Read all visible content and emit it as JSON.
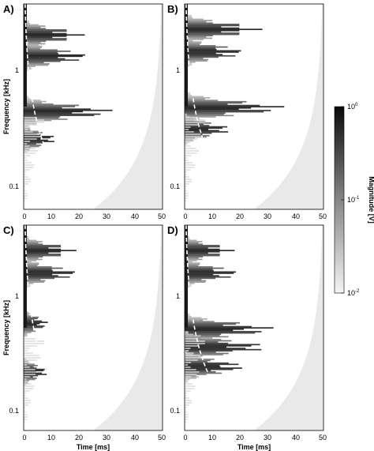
{
  "chart_data": {
    "type": "heatmap",
    "panels": [
      {
        "label": "A)",
        "ridges": [
          [
            1.8,
            22
          ],
          [
            1.2,
            24
          ],
          [
            0.42,
            33
          ],
          [
            0.25,
            12
          ]
        ]
      },
      {
        "label": "B)",
        "ridges": [
          [
            2.0,
            28
          ],
          [
            1.3,
            22
          ],
          [
            0.45,
            37
          ],
          [
            0.3,
            17
          ]
        ]
      },
      {
        "label": "C)",
        "ridges": [
          [
            2.0,
            19
          ],
          [
            1.3,
            20
          ],
          [
            0.5,
            9
          ],
          [
            0.2,
            9
          ]
        ]
      },
      {
        "label": "D)",
        "ridges": [
          [
            2.0,
            18
          ],
          [
            1.3,
            20
          ],
          [
            0.45,
            33
          ],
          [
            0.32,
            30
          ],
          [
            0.22,
            22
          ]
        ]
      }
    ],
    "x": {
      "label": "Time [ms]",
      "ticks": [
        0,
        10,
        20,
        30,
        40,
        50
      ],
      "range": [
        0,
        50
      ]
    },
    "y": {
      "label": "Frequency [kHz]",
      "tick_labels": [
        "1",
        "0.1"
      ],
      "tick_values": [
        1,
        0.1
      ],
      "range": [
        0.065,
        3.2
      ],
      "scale": "log"
    },
    "colorbar": {
      "label": "Magnitude [V]",
      "tick_labels": [
        "10",
        "10",
        "10"
      ],
      "tick_exponents": [
        "0",
        "-1",
        "-2"
      ],
      "tick_values": [
        1,
        0.1,
        0.01
      ],
      "scale": "log",
      "colors": {
        "high": "#0a0a0a",
        "low": "#f4f4f4"
      }
    },
    "cone_of_influence": {
      "style": "white dashed line",
      "color": "#ffffff"
    },
    "masked_region_color": "#e9e9e9"
  }
}
